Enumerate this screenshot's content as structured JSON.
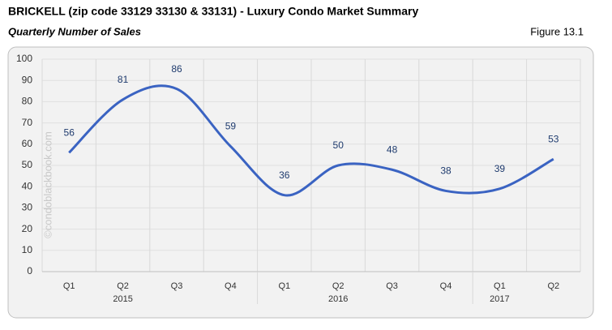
{
  "chart_data": {
    "type": "line",
    "title": "BRICKELL (zip code 33129 33130 & 33131) - Luxury Condo Market Summary",
    "subtitle": "Quarterly Number of Sales",
    "figure_label": "Figure 13.1",
    "watermark": "©condoblackbook.com",
    "categories": [
      "Q1",
      "Q2",
      "Q3",
      "Q4",
      "Q1",
      "Q2",
      "Q3",
      "Q4",
      "Q1",
      "Q2"
    ],
    "groups": [
      {
        "name": "2015",
        "count": 4
      },
      {
        "name": "2016",
        "count": 4
      },
      {
        "name": "2017",
        "count": 2
      }
    ],
    "values": [
      56,
      81,
      86,
      59,
      36,
      50,
      48,
      38,
      39,
      53
    ],
    "color": "#3a63c2",
    "label_color": "#1f3b6e",
    "smooth": true,
    "ylim": [
      0,
      100
    ],
    "yticks": [
      0,
      10,
      20,
      30,
      40,
      50,
      60,
      70,
      80,
      90,
      100
    ],
    "grid": true
  }
}
